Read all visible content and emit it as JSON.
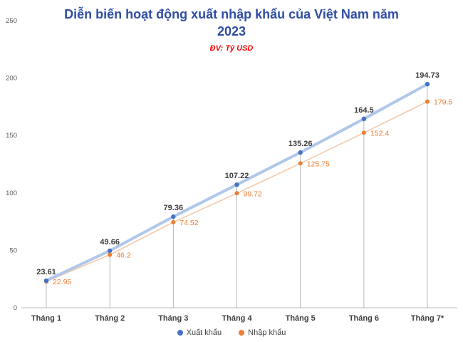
{
  "chart_data": {
    "type": "line",
    "title": "Diễn biến hoạt động xuất nhập khẩu của Việt Nam năm 2023",
    "subtitle": "ĐV: Tỷ USD",
    "categories": [
      "Tháng 1",
      "Tháng 2",
      "Tháng 3",
      "Tháng 4",
      "Tháng 5",
      "Tháng 6",
      "Tháng 7*"
    ],
    "series": [
      {
        "name": "Xuất khẩu",
        "values": [
          23.61,
          49.66,
          79.36,
          107.22,
          135.26,
          164.5,
          194.73
        ],
        "color": "#4472C4",
        "line_color": "#AFC7EA",
        "label_color": "#3b3b3b"
      },
      {
        "name": "Nhập khẩu",
        "values": [
          22.95,
          46.2,
          74.52,
          99.72,
          125.75,
          152.4,
          179.5
        ],
        "color": "#ED7D31",
        "line_color": "#F6C9A8",
        "label_color": "#ED7D31"
      }
    ],
    "ylim": [
      0,
      250
    ],
    "yticks": [
      0,
      50,
      100,
      150,
      200,
      250
    ],
    "grid": "off",
    "drop_lines": true,
    "legend_position": "bottom",
    "title_color": "#2F4DA5",
    "subtitle_color": "#FF0000",
    "axis_color": "#BFBFBF",
    "drop_line_color": "#A6A6A6"
  }
}
